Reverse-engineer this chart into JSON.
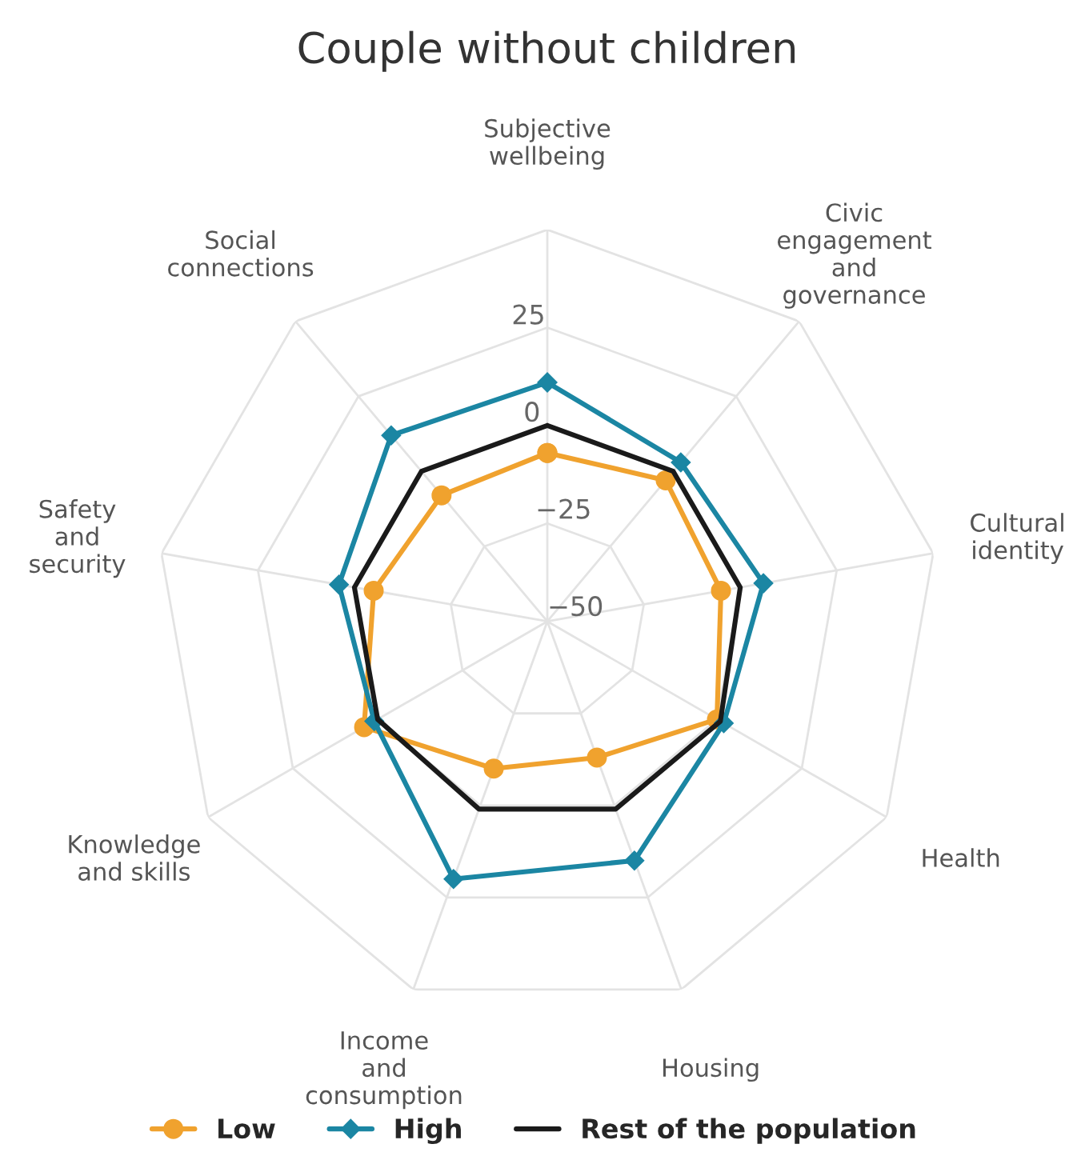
{
  "chart_data": {
    "type": "radar",
    "title": "Couple without children",
    "categories": [
      "Subjective\nwellbeing",
      "Civic\nengagement\nand\ngovernance",
      "Cultural\nidentity",
      "Health",
      "Housing",
      "Income\nand\nconsumption",
      "Knowledge\nand skills",
      "Safety\nand\nsecurity",
      "Social\nconnections"
    ],
    "series": [
      {
        "name": "Low",
        "color": "#f0a22e",
        "marker": "circle",
        "values": [
          -7,
          -3,
          -5,
          0,
          -13,
          -10,
          4,
          -5,
          -8
        ]
      },
      {
        "name": "High",
        "color": "#1b86a3",
        "marker": "diamond",
        "values": [
          11,
          3,
          6,
          2,
          15,
          20,
          1,
          4,
          12
        ]
      },
      {
        "name": "Rest of the population",
        "color": "#1a1a1a",
        "marker": "none",
        "values": [
          0,
          0,
          0,
          1,
          1,
          1,
          0,
          0,
          0
        ]
      }
    ],
    "ylim": [
      -50,
      50
    ],
    "yticks": [
      -50,
      -25,
      0,
      25
    ],
    "grid": true,
    "legend": "bottom"
  }
}
